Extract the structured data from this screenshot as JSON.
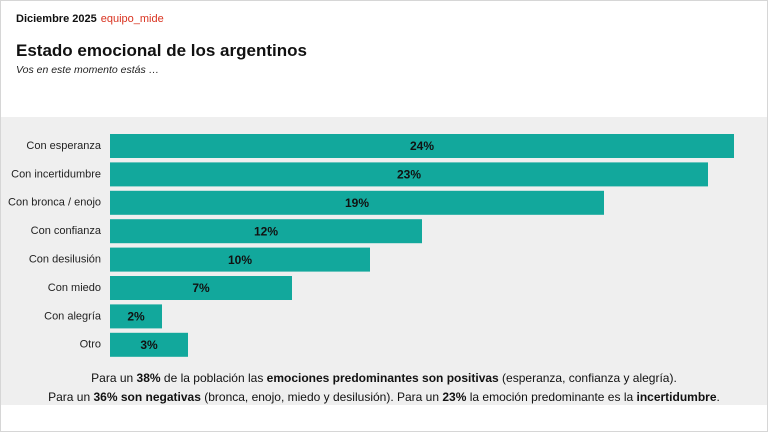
{
  "header": {
    "date": "Diciembre 2025",
    "brand": "equipo_mide"
  },
  "chart_data": {
    "type": "barh",
    "title": "Estado emocional de los argentinos",
    "subtitle": "Vos en este momento estás …",
    "categories": [
      "Con esperanza",
      "Con incertidumbre",
      "Con bronca / enojo",
      "Con confianza",
      "Con desilusión",
      "Con miedo",
      "Con alegría",
      "Otro"
    ],
    "values": [
      24,
      23,
      19,
      12,
      10,
      7,
      2,
      3
    ],
    "value_labels": [
      "24%",
      "23%",
      "19%",
      "12%",
      "10%",
      "7%",
      "2%",
      "3%"
    ],
    "color": "#12a89c"
  },
  "footer": {
    "lines": [
      [
        {
          "text": "Para un ",
          "bold": false
        },
        {
          "text": "38%",
          "bold": true
        },
        {
          "text": " de la población las ",
          "bold": false
        },
        {
          "text": "emociones predominantes son positivas",
          "bold": true
        },
        {
          "text": " (esperanza, confianza y alegría).",
          "bold": false
        }
      ],
      [
        {
          "text": "Para un ",
          "bold": false
        },
        {
          "text": "36% son negativas",
          "bold": true
        },
        {
          "text": " (bronca, enojo, miedo y desilusión). Para un ",
          "bold": false
        },
        {
          "text": "23%",
          "bold": true
        },
        {
          "text": " la emoción predominante es la ",
          "bold": false
        },
        {
          "text": "incertidumbre",
          "bold": true
        },
        {
          "text": ".",
          "bold": false
        }
      ]
    ]
  }
}
